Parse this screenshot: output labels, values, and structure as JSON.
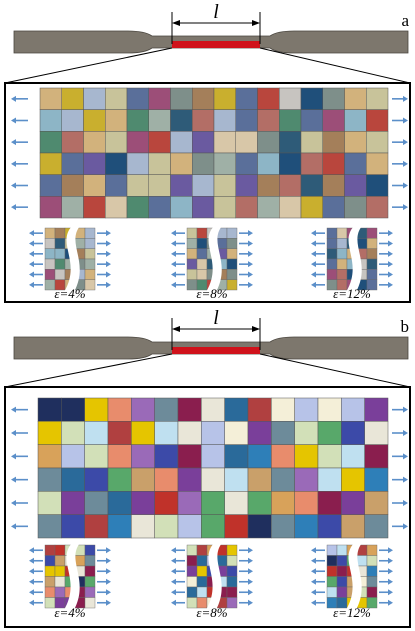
{
  "panels": [
    {
      "label": "a",
      "length_label": "l",
      "strains": [
        "ε=4%",
        "ε=8%",
        "ε=12%"
      ]
    },
    {
      "label": "b",
      "length_label": "l",
      "strains": [
        "ε=4%",
        "ε=8%",
        "ε=12%"
      ]
    }
  ]
}
